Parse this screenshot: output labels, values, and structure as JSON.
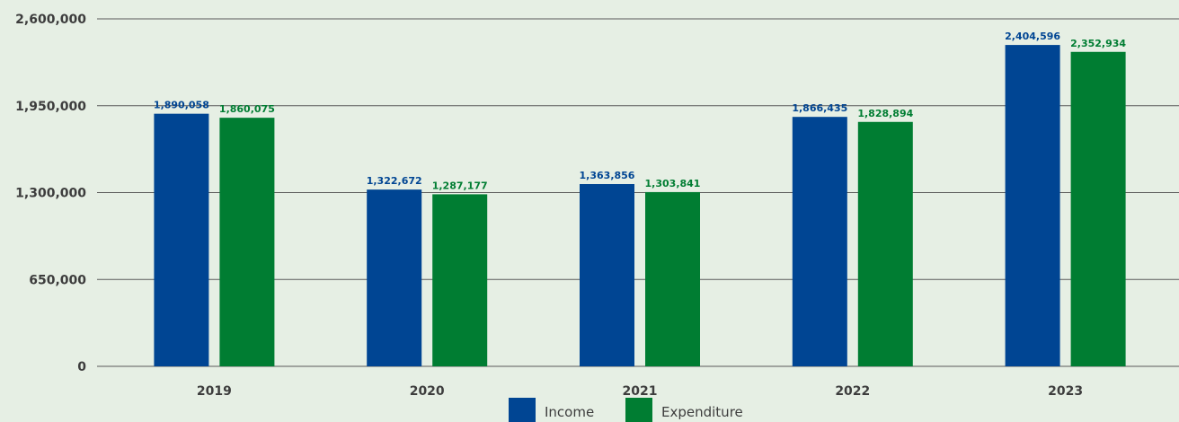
{
  "chart_data": {
    "type": "bar",
    "categories": [
      "2019",
      "2020",
      "2021",
      "2022",
      "2023"
    ],
    "series": [
      {
        "name": "Income",
        "values": [
          1890058,
          1322672,
          1363856,
          1866435,
          2404596
        ],
        "labels": [
          "1,890,058",
          "1,322,672",
          "1,363,856",
          "1,866,435",
          "2,404,596"
        ],
        "color": "#004593"
      },
      {
        "name": "Expenditure",
        "values": [
          1860075,
          1287177,
          1303841,
          1828894,
          2352934
        ],
        "labels": [
          "1,860,075",
          "1,287,177",
          "1,303,841",
          "1,828,894",
          "2,352,934"
        ],
        "color": "#007d32"
      }
    ],
    "ylim": [
      0,
      2600000
    ],
    "yticks": [
      0,
      650000,
      1300000,
      1950000,
      2600000
    ],
    "ytick_labels": [
      "0",
      "650,000",
      "1,300,000",
      "1,950,000",
      "2,600,000"
    ],
    "title": "",
    "xlabel": "",
    "ylabel": "",
    "grid": true,
    "legend_position": "bottom"
  }
}
